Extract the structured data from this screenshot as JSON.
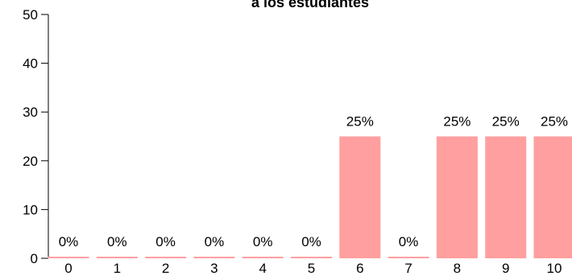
{
  "chart_data": {
    "type": "bar",
    "title": "a los estudiantes",
    "categories": [
      "0",
      "1",
      "2",
      "3",
      "4",
      "5",
      "6",
      "7",
      "8",
      "9",
      "10"
    ],
    "values": [
      0,
      0,
      0,
      0,
      0,
      0,
      25,
      0,
      25,
      25,
      25
    ],
    "data_labels": [
      "0%",
      "0%",
      "0%",
      "0%",
      "0%",
      "0%",
      "25%",
      "0%",
      "25%",
      "25%",
      "25%"
    ],
    "y_ticks": [
      "0",
      "10",
      "20",
      "30",
      "40",
      "50"
    ],
    "ylim": [
      0,
      50
    ],
    "xlabel": "",
    "ylabel": "",
    "grid": false,
    "bar_color": "#ff9f9f"
  }
}
